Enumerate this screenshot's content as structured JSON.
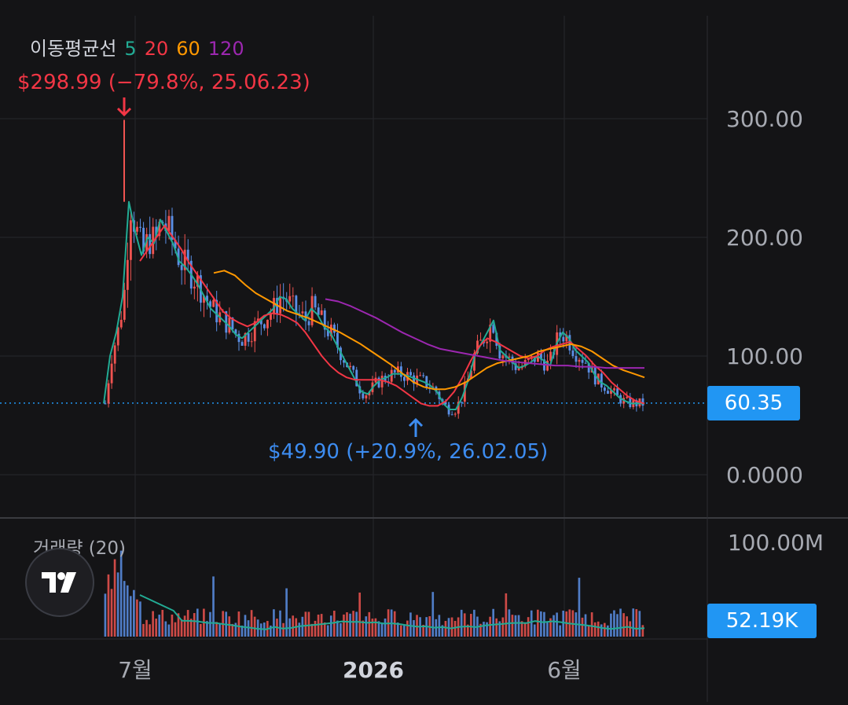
{
  "legend": {
    "label": "이동평균선",
    "ma": [
      {
        "period": "5",
        "color": "#22ab94"
      },
      {
        "period": "20",
        "color": "#f23645"
      },
      {
        "period": "60",
        "color": "#ff9800"
      },
      {
        "period": "120",
        "color": "#9c27b0"
      }
    ]
  },
  "annotations": {
    "high": "$298.99 (−79.8%, 25.06.23)",
    "low": "$49.90 (+20.9%, 26.02.05)"
  },
  "price_axis_labels": [
    "300.00",
    "200.00",
    "100.00",
    "0.0000"
  ],
  "current_price": "60.35",
  "volume_label": "거래량 (20)",
  "volume_axis_label": "100.00M",
  "current_volume": "52.19K",
  "time_labels": [
    "7월",
    "2026",
    "6월"
  ],
  "colors": {
    "up": "#ef5350",
    "down": "#5b8fe6",
    "price_line": "#2196f3",
    "ma_volume": "#22ab94"
  },
  "chart_data": {
    "type": "candlestick",
    "x_range": [
      "2025-06",
      "2026-07"
    ],
    "ylim": [
      0,
      340
    ],
    "y_ticks": [
      0,
      100,
      200,
      300
    ],
    "ylabel_unit": "$",
    "grid": true,
    "current_price": 60.35,
    "series": [
      {
        "name": "5",
        "values": [
          60,
          100,
          120,
          150,
          230,
          205,
          185,
          200,
          195,
          215,
          205,
          195,
          180,
          175,
          168,
          160,
          150,
          140,
          135,
          130,
          125,
          118,
          115,
          120,
          125,
          130,
          135,
          140,
          150,
          148,
          140,
          135,
          130,
          140,
          135,
          125,
          120,
          110,
          100,
          90,
          80,
          70,
          68,
          75,
          80,
          82,
          85,
          85,
          84,
          82,
          80,
          78,
          75,
          70,
          60,
          55,
          55,
          65,
          80,
          100,
          110,
          120,
          130,
          105,
          100,
          95,
          90,
          92,
          95,
          100,
          96,
          92,
          110,
          120,
          115,
          105,
          100,
          95,
          85,
          78,
          75,
          70,
          65,
          62,
          60,
          60,
          60
        ]
      },
      {
        "name": "20",
        "values": [
          180,
          190,
          200,
          210,
          200,
          190,
          178,
          168,
          158,
          148,
          138,
          132,
          128,
          125,
          128,
          134,
          136,
          135,
          132,
          128,
          120,
          110,
          100,
          92,
          86,
          82,
          80,
          80,
          80,
          80,
          78,
          75,
          70,
          65,
          60,
          58,
          58,
          62,
          70,
          82,
          96,
          108,
          115,
          112,
          108,
          104,
          100,
          98,
          100,
          105,
          108,
          110,
          112,
          106,
          100,
          92,
          86,
          78,
          72,
          66,
          62,
          60
        ]
      },
      {
        "name": "60",
        "values": [
          170,
          172,
          168,
          160,
          153,
          148,
          143,
          138,
          135,
          132,
          128,
          124,
          120,
          115,
          110,
          104,
          98,
          92,
          85,
          78,
          74,
          72,
          72,
          74,
          78,
          84,
          90,
          94,
          96,
          98,
          100,
          104,
          106,
          108,
          110,
          108,
          104,
          98,
          92,
          88,
          85,
          82
        ]
      },
      {
        "name": "120",
        "values": [
          148,
          146,
          142,
          137,
          132,
          126,
          120,
          115,
          110,
          106,
          104,
          102,
          100,
          98,
          96,
          95,
          94,
          93,
          92,
          92,
          91,
          91,
          90,
          90,
          90,
          90
        ]
      }
    ],
    "annotations": [
      {
        "label": "high",
        "date": "2025-06-23",
        "value": 298.99,
        "change": "-79.8%"
      },
      {
        "label": "low",
        "date": "2026-02-05",
        "value": 49.9,
        "change": "+20.9%"
      }
    ],
    "volume": {
      "ylim_label": "100.00M",
      "ma_period": 20,
      "current": "52.19K"
    }
  }
}
